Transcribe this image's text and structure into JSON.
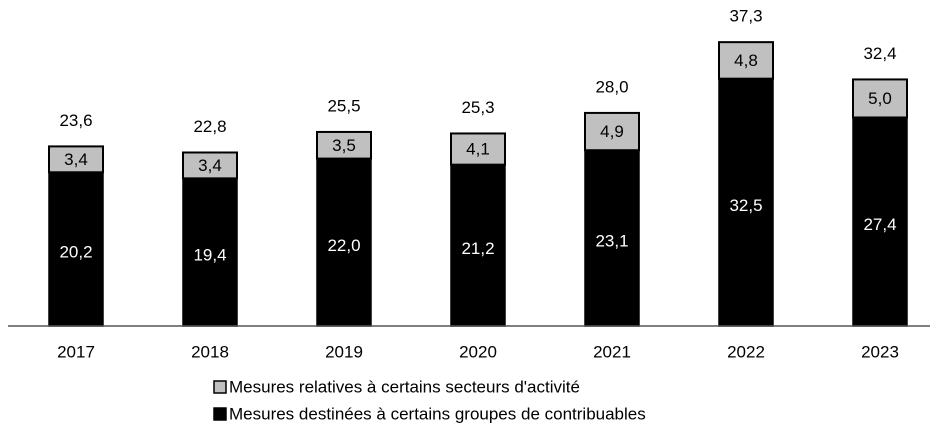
{
  "chart_data": {
    "type": "bar",
    "stacked": true,
    "categories": [
      "2017",
      "2018",
      "2019",
      "2020",
      "2021",
      "2022",
      "2023"
    ],
    "series": [
      {
        "name": "Mesures destinées à certains groupes de contribuables",
        "values": [
          20.2,
          19.4,
          22.0,
          21.2,
          23.1,
          32.5,
          27.4
        ],
        "labels": [
          "20,2",
          "19,4",
          "22,0",
          "21,2",
          "23,1",
          "32,5",
          "27,4"
        ],
        "color": "#000000"
      },
      {
        "name": "Mesures relatives à certains secteurs d'activité",
        "values": [
          3.4,
          3.4,
          3.5,
          4.1,
          4.9,
          4.8,
          5.0
        ],
        "labels": [
          "3,4",
          "3,4",
          "3,5",
          "4,1",
          "4,9",
          "4,8",
          "5,0"
        ],
        "color": "#c0c0c0"
      }
    ],
    "totals": [
      23.6,
      22.8,
      25.5,
      25.3,
      28.0,
      37.3,
      32.4
    ],
    "total_labels": [
      "23,6",
      "22,8",
      "25,5",
      "25,3",
      "28,0",
      "37,3",
      "32,4"
    ],
    "ylim": [
      0,
      38
    ],
    "grid": false,
    "legend_position": "bottom",
    "legend_order": [
      1,
      0
    ]
  }
}
